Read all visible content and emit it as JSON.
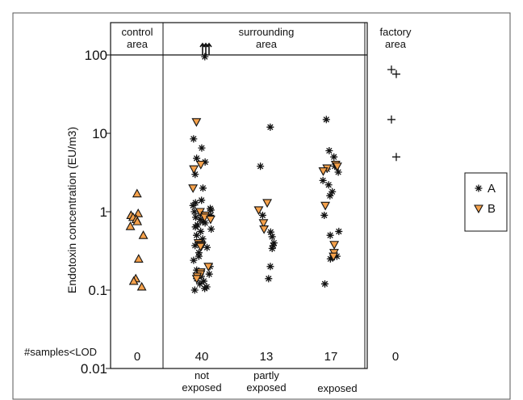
{
  "chart_data": {
    "type": "scatter",
    "ylabel": "Endotoxin concentration (EU/m3)",
    "y_scale": "log",
    "ylim": [
      0.01,
      100
    ],
    "y_ticks": [
      {
        "value": 100,
        "label": "100"
      },
      {
        "value": 10,
        "label": "10"
      },
      {
        "value": 1,
        "label": "1"
      },
      {
        "value": 0.1,
        "label": "0.1"
      },
      {
        "value": 0.01,
        "label": "0.01"
      }
    ],
    "panels": [
      {
        "key": "control",
        "title_lines": [
          "control",
          "area"
        ]
      },
      {
        "key": "surrounding",
        "title_lines": [
          "surrounding",
          "area"
        ]
      },
      {
        "key": "factory",
        "title_lines": [
          "factory",
          "area"
        ]
      }
    ],
    "groups": [
      {
        "key": "control",
        "x_label_lines": [],
        "samples_below_lod": "0"
      },
      {
        "key": "not_exposed",
        "x_label_lines": [
          "not",
          "exposed"
        ],
        "samples_below_lod": "40"
      },
      {
        "key": "partly_exposed",
        "x_label_lines": [
          "partly",
          "exposed"
        ],
        "samples_below_lod": "13"
      },
      {
        "key": "exposed",
        "x_label_lines": [
          "exposed"
        ],
        "samples_below_lod": "17"
      },
      {
        "key": "factory",
        "x_label_lines": [],
        "samples_below_lod": "0"
      }
    ],
    "lod_row_label": "#samples<LOD",
    "legend": [
      {
        "label": "A",
        "marker": "asterisk",
        "color": "#111111"
      },
      {
        "label": "B",
        "marker": "triangle-down",
        "color": "#f5a14b"
      }
    ],
    "marker_colors": {
      "orange_fill": "#f5a14b",
      "stroke": "#111111"
    },
    "series": [
      {
        "group": "control",
        "marker": "triangle-up",
        "values": [
          1.7,
          0.95,
          0.9,
          0.85,
          0.8,
          0.75,
          0.65,
          0.5,
          0.25,
          0.14,
          0.13,
          0.11
        ]
      },
      {
        "group": "not_exposed",
        "marker": "asterisk",
        "values": [
          95,
          8.5,
          6.5,
          4.8,
          4.3,
          3.0,
          2.0,
          1.4,
          1.3,
          1.2,
          1.1,
          1.05,
          1.0,
          0.95,
          0.9,
          0.85,
          0.8,
          0.75,
          0.72,
          0.68,
          0.64,
          0.6,
          0.56,
          0.5,
          0.45,
          0.4,
          0.37,
          0.35,
          0.3,
          0.27,
          0.24,
          0.2,
          0.18,
          0.16,
          0.15,
          0.14,
          0.13,
          0.12,
          0.11,
          0.105,
          0.1
        ]
      },
      {
        "group": "not_exposed",
        "marker": "triangle-down",
        "values": [
          14,
          4.0,
          3.5,
          2.0,
          1.0,
          0.9,
          0.85,
          0.8,
          0.4,
          0.38,
          0.37,
          0.36,
          0.2,
          0.17,
          0.16,
          0.15,
          0.14
        ]
      },
      {
        "group": "not_exposed",
        "marker": "arrow-up",
        "values": [
          130,
          130,
          130
        ]
      },
      {
        "group": "partly_exposed",
        "marker": "asterisk",
        "values": [
          12,
          3.8,
          0.9,
          0.55,
          0.48,
          0.4,
          0.37,
          0.34,
          0.2,
          0.14
        ]
      },
      {
        "group": "partly_exposed",
        "marker": "triangle-down",
        "values": [
          1.3,
          1.05,
          0.72,
          0.6
        ]
      },
      {
        "group": "exposed",
        "marker": "asterisk",
        "values": [
          15,
          6.0,
          5.0,
          3.8,
          3.5,
          3.2,
          2.5,
          2.2,
          1.8,
          1.6,
          0.9,
          0.56,
          0.5,
          0.27,
          0.26,
          0.25,
          0.12
        ]
      },
      {
        "group": "exposed",
        "marker": "triangle-down",
        "values": [
          4.0,
          3.8,
          3.6,
          3.3,
          1.2,
          0.38,
          0.3,
          0.27
        ]
      },
      {
        "group": "factory",
        "marker": "plus",
        "values": [
          65,
          57,
          15,
          5.0
        ]
      }
    ]
  }
}
